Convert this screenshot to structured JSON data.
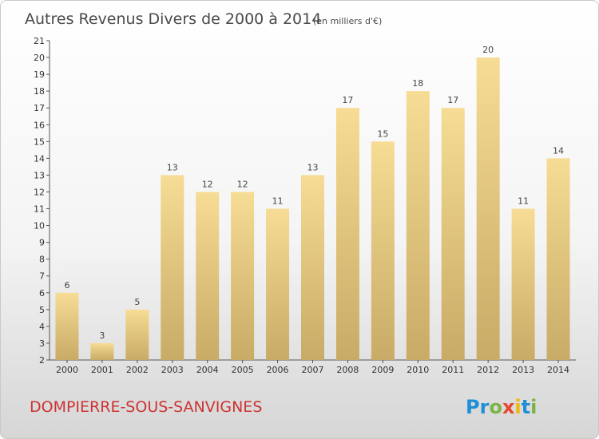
{
  "header": {
    "title": "Autres Revenus Divers de 2000 à 2014",
    "unit_note": "(en milliers d'€)"
  },
  "footer": {
    "commune": "DOMPIERRE-SOUS-SANVIGNES",
    "brand": "Proxiti",
    "brand_colors": [
      "#1f8fd6",
      "#1f8fd6",
      "#7cb342",
      "#e8462e",
      "#f2b705",
      "#1f8fd6",
      "#7cb342"
    ]
  },
  "colors": {
    "bar_light": "#f6dc95",
    "bar_dark": "#c8ab66",
    "commune_text": "#cc3333"
  },
  "chart_data": {
    "type": "bar",
    "title": "Autres Revenus Divers de 2000 à 2014",
    "categories": [
      "2000",
      "2001",
      "2002",
      "2003",
      "2004",
      "2005",
      "2006",
      "2007",
      "2008",
      "2009",
      "2010",
      "2011",
      "2012",
      "2013",
      "2014"
    ],
    "values": [
      6,
      3,
      5,
      13,
      12,
      12,
      11,
      13,
      17,
      15,
      18,
      17,
      20,
      11,
      14
    ],
    "ylim": [
      2,
      21
    ],
    "yticks": [
      2,
      3,
      4,
      5,
      6,
      7,
      8,
      9,
      10,
      11,
      12,
      13,
      14,
      15,
      16,
      17,
      18,
      19,
      20,
      21
    ],
    "grid": false,
    "xlabel": "",
    "ylabel": ""
  }
}
